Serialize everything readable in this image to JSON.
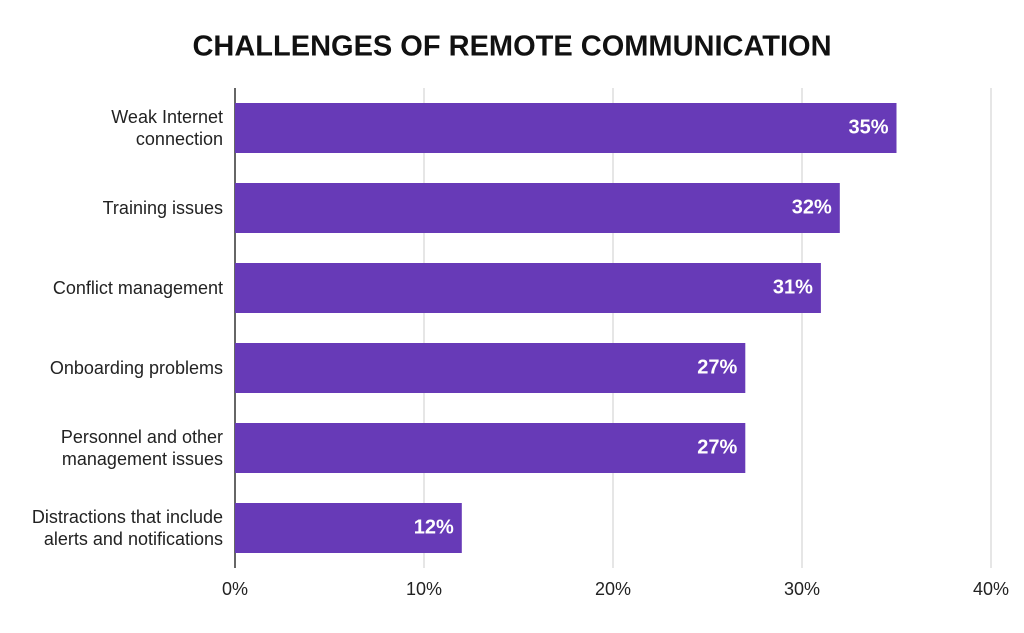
{
  "chart_data": {
    "type": "hbar",
    "title": "CHALLENGES OF REMOTE COMMUNICATION",
    "categories": [
      "Weak Internet connection",
      "Training issues",
      "Conflict management",
      "Onboarding problems",
      "Personnel and other management issues",
      "Distractions that include alerts and notifications"
    ],
    "values": [
      35,
      32,
      31,
      27,
      27,
      12
    ],
    "value_labels": [
      "35%",
      "32%",
      "31%",
      "27%",
      "27%",
      "12%"
    ],
    "color": "#673ab7",
    "xlim": [
      0,
      40
    ],
    "xticks": [
      {
        "value": 0,
        "label": "0%"
      },
      {
        "value": 10,
        "label": "10%"
      },
      {
        "value": 20,
        "label": "20%"
      },
      {
        "value": 30,
        "label": "30%"
      },
      {
        "value": 40,
        "label": "40%"
      }
    ],
    "grid": true
  }
}
